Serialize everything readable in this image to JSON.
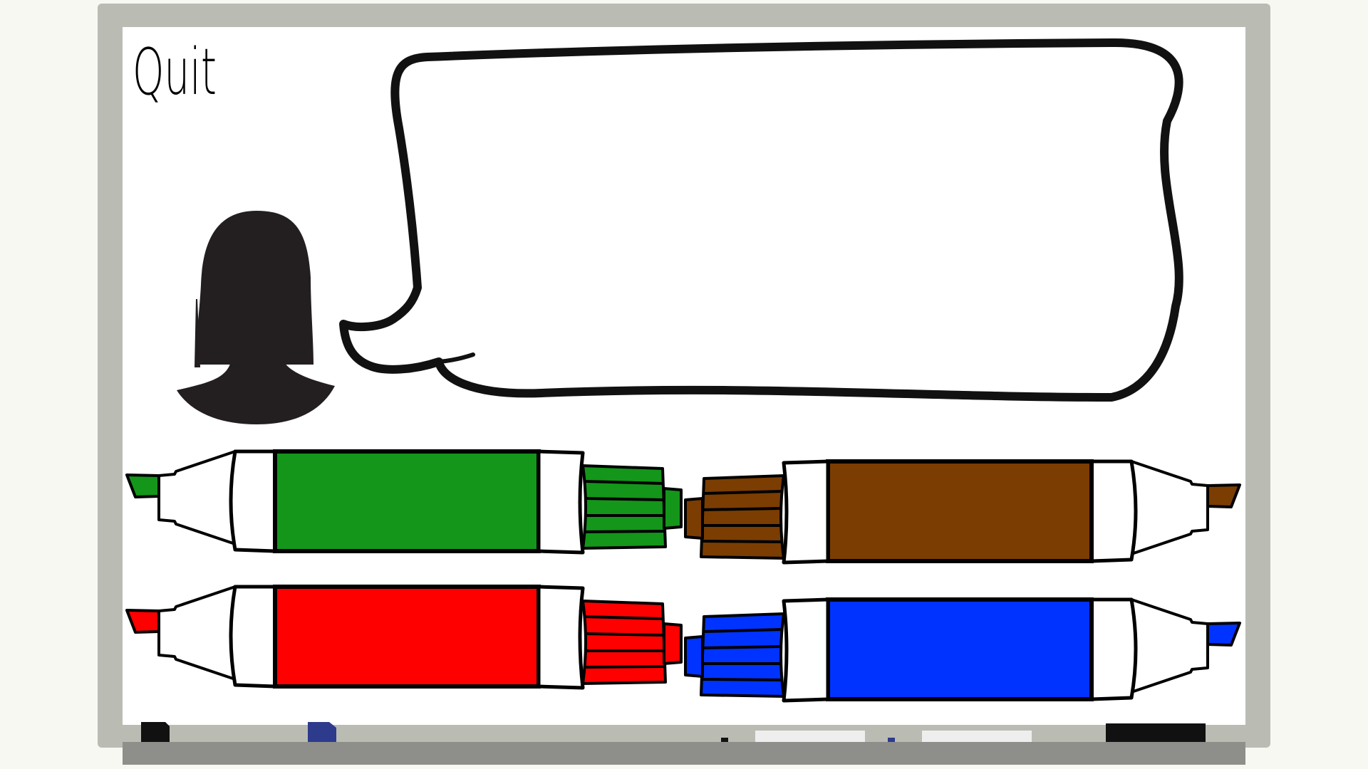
{
  "quit_label": "Quit",
  "speech_bubble_text": "",
  "colors": {
    "background": "#f7f8f1",
    "board_frame": "#babcb3",
    "board_surface": "#ffffff",
    "tray": "#8e8f8a",
    "silhouette": "#231f20",
    "green": "#13961a",
    "brown": "#7b3d02",
    "red": "#ff0000",
    "blue": "#0033ff"
  },
  "markers": [
    {
      "name": "green-marker",
      "color": "green"
    },
    {
      "name": "brown-marker",
      "color": "brown"
    },
    {
      "name": "red-marker",
      "color": "red"
    },
    {
      "name": "blue-marker",
      "color": "blue"
    }
  ],
  "tray_items": [
    {
      "name": "black-eraser-icon",
      "color": "#111111"
    },
    {
      "name": "navy-eraser-icon",
      "color": "#2e3a8c"
    },
    {
      "name": "white-chalk-icon",
      "color": "#eeeeee"
    },
    {
      "name": "white-chalk-icon-2",
      "color": "#eeeeee"
    },
    {
      "name": "black-block-icon",
      "color": "#111111"
    }
  ]
}
